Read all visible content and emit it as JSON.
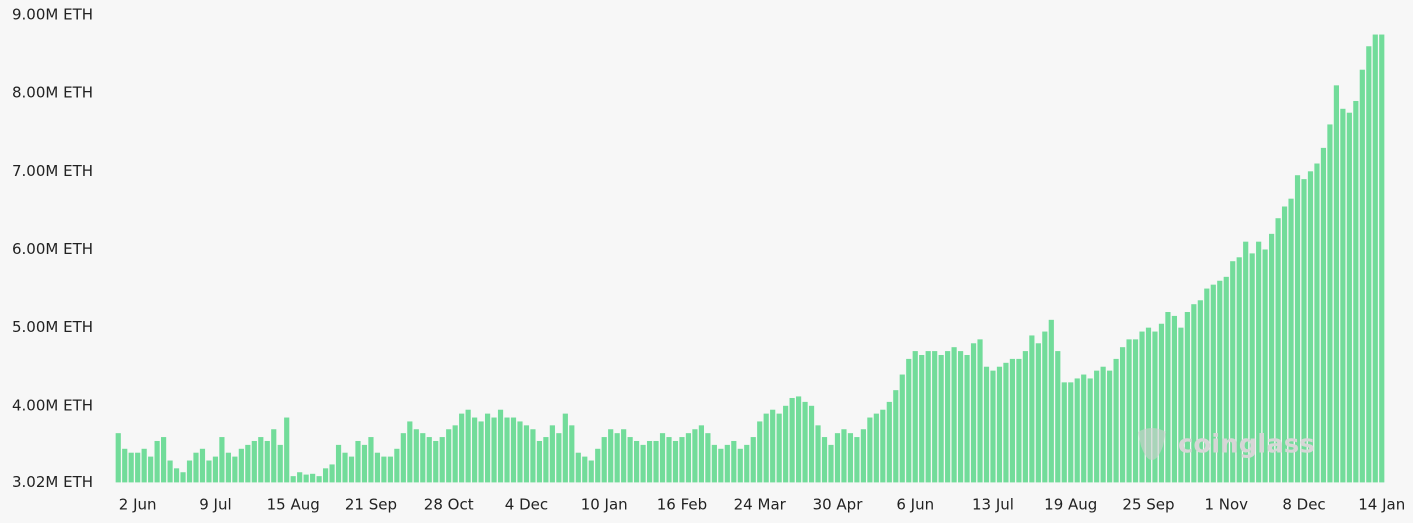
{
  "chart_data": {
    "type": "bar",
    "color": "#72dc9a",
    "watermark": "coinglass",
    "ylim": [
      3.02,
      9.0
    ],
    "yticks": [
      {
        "value": 3.02,
        "label": "3.02M ETH"
      },
      {
        "value": 4,
        "label": "4.00M ETH"
      },
      {
        "value": 5,
        "label": "5.00M ETH"
      },
      {
        "value": 6,
        "label": "6.00M ETH"
      },
      {
        "value": 7,
        "label": "7.00M ETH"
      },
      {
        "value": 8,
        "label": "8.00M ETH"
      },
      {
        "value": 9,
        "label": "9.00M ETH"
      }
    ],
    "categories": [
      null,
      null,
      null,
      "2 Jun",
      null,
      null,
      null,
      null,
      null,
      null,
      null,
      null,
      null,
      null,
      null,
      "9 Jul",
      null,
      null,
      null,
      null,
      null,
      null,
      null,
      null,
      null,
      null,
      null,
      "15 Aug",
      null,
      null,
      null,
      null,
      null,
      null,
      null,
      null,
      null,
      null,
      null,
      "21 Sep",
      null,
      null,
      null,
      null,
      null,
      null,
      null,
      null,
      null,
      null,
      null,
      "28 Oct",
      null,
      null,
      null,
      null,
      null,
      null,
      null,
      null,
      null,
      null,
      null,
      "4 Dec",
      null,
      null,
      null,
      null,
      null,
      null,
      null,
      null,
      null,
      null,
      null,
      "10 Jan",
      null,
      null,
      null,
      null,
      null,
      null,
      null,
      null,
      null,
      null,
      null,
      "16 Feb",
      null,
      null,
      null,
      null,
      null,
      null,
      null,
      null,
      null,
      null,
      null,
      "24 Mar",
      null,
      null,
      null,
      null,
      null,
      null,
      null,
      null,
      null,
      null,
      null,
      "30 Apr",
      null,
      null,
      null,
      null,
      null,
      null,
      null,
      null,
      null,
      null,
      null,
      "6 Jun",
      null,
      null,
      null,
      null,
      null,
      null,
      null,
      null,
      null,
      null,
      null,
      "13 Jul",
      null,
      null,
      null,
      null,
      null,
      null,
      null,
      null,
      null,
      null,
      null,
      "19 Aug",
      null,
      null,
      null,
      null,
      null,
      null,
      null,
      null,
      null,
      null,
      null,
      "25 Sep",
      null,
      null,
      null,
      null,
      null,
      null,
      null,
      null,
      null,
      null,
      null,
      "1 Nov",
      null,
      null,
      null,
      null,
      null,
      null,
      null,
      null,
      null,
      null,
      null,
      "8 Dec",
      null,
      null,
      null,
      null,
      null,
      null,
      null,
      null,
      null,
      null,
      null,
      "14 Jan"
    ],
    "values": [
      3.65,
      3.45,
      3.4,
      3.4,
      3.45,
      3.35,
      3.55,
      3.6,
      3.3,
      3.2,
      3.15,
      3.3,
      3.4,
      3.45,
      3.3,
      3.35,
      3.6,
      3.4,
      3.35,
      3.45,
      3.5,
      3.55,
      3.6,
      3.55,
      3.7,
      3.5,
      3.85,
      3.1,
      3.15,
      3.12,
      3.13,
      3.1,
      3.2,
      3.25,
      3.5,
      3.4,
      3.35,
      3.55,
      3.5,
      3.6,
      3.4,
      3.35,
      3.35,
      3.45,
      3.65,
      3.8,
      3.7,
      3.65,
      3.6,
      3.55,
      3.6,
      3.7,
      3.75,
      3.9,
      3.95,
      3.85,
      3.8,
      3.9,
      3.85,
      3.95,
      3.85,
      3.85,
      3.8,
      3.75,
      3.7,
      3.55,
      3.6,
      3.75,
      3.65,
      3.9,
      3.75,
      3.4,
      3.35,
      3.3,
      3.45,
      3.6,
      3.7,
      3.65,
      3.7,
      3.6,
      3.55,
      3.5,
      3.55,
      3.55,
      3.65,
      3.6,
      3.55,
      3.6,
      3.65,
      3.7,
      3.75,
      3.65,
      3.5,
      3.45,
      3.5,
      3.55,
      3.45,
      3.5,
      3.6,
      3.8,
      3.9,
      3.95,
      3.9,
      4.0,
      4.1,
      4.12,
      4.05,
      4.0,
      3.75,
      3.6,
      3.5,
      3.65,
      3.7,
      3.65,
      3.6,
      3.7,
      3.85,
      3.9,
      3.95,
      4.05,
      4.2,
      4.4,
      4.6,
      4.7,
      4.65,
      4.7,
      4.7,
      4.65,
      4.7,
      4.75,
      4.7,
      4.65,
      4.8,
      4.85,
      4.5,
      4.45,
      4.5,
      4.55,
      4.6,
      4.6,
      4.7,
      4.9,
      4.8,
      4.95,
      5.1,
      4.7,
      4.3,
      4.3,
      4.35,
      4.4,
      4.35,
      4.45,
      4.5,
      4.45,
      4.6,
      4.75,
      4.85,
      4.85,
      4.95,
      5.0,
      4.95,
      5.05,
      5.2,
      5.15,
      5.0,
      5.2,
      5.3,
      5.35,
      5.5,
      5.55,
      5.6,
      5.65,
      5.85,
      5.9,
      6.1,
      5.95,
      6.1,
      6.0,
      6.2,
      6.4,
      6.55,
      6.65,
      6.95,
      6.9,
      7.0,
      7.1,
      7.3,
      7.6,
      8.1,
      7.8,
      7.75,
      7.9,
      8.3,
      8.6,
      8.75,
      8.75
    ]
  }
}
